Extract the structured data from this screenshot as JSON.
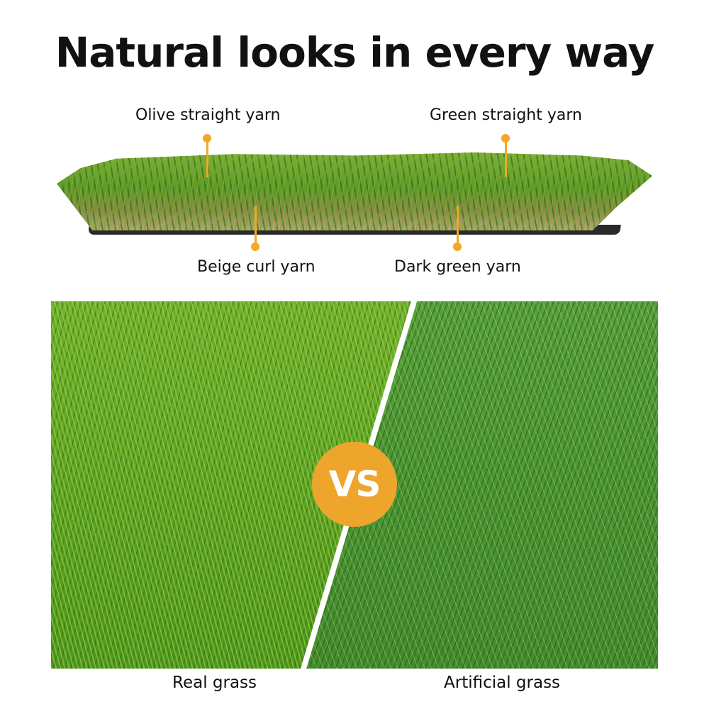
{
  "title": "Natural looks in every way",
  "labels": {
    "olive": "Olive straight yarn",
    "green": "Green straight yarn",
    "beige": "Beige curl yarn",
    "dark": "Dark green yarn"
  },
  "badge": "VS",
  "captions": {
    "left": "Real grass",
    "right": "Artificial grass"
  },
  "colors": {
    "accent": "#eea52b"
  }
}
